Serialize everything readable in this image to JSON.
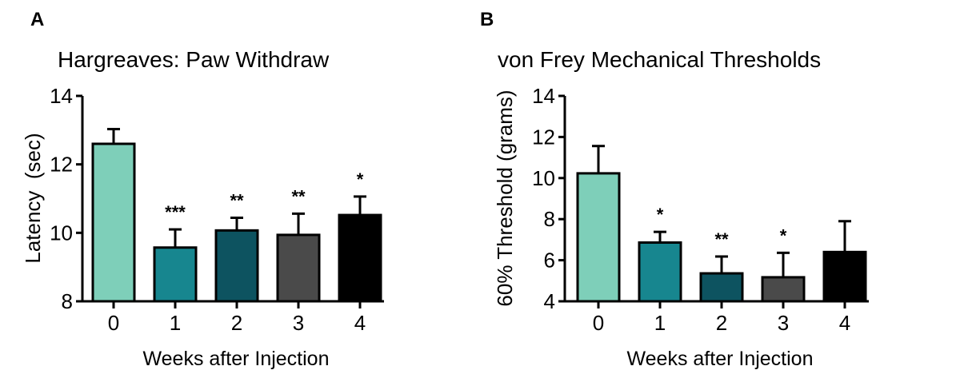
{
  "chart_data": [
    {
      "type": "bar",
      "panel_label": "A",
      "title": "Hargreaves: Paw Withdraw",
      "xlabel": "Weeks after Injection",
      "ylabel": "Latency  (sec)",
      "ylim": [
        8,
        14
      ],
      "yticks": [
        "8",
        "10",
        "12",
        "14"
      ],
      "categories": [
        "0",
        "1",
        "2",
        "3",
        "4"
      ],
      "values": [
        12.6,
        9.57,
        10.07,
        9.94,
        10.52
      ],
      "error_upper": [
        13.03,
        10.1,
        10.44,
        10.56,
        11.06
      ],
      "significance": [
        "",
        "***",
        "**",
        "**",
        "*"
      ],
      "colors": [
        "#7ecfb9",
        "#17868f",
        "#0d5360",
        "#4a4a4a",
        "#000000"
      ],
      "grid": false
    },
    {
      "type": "bar",
      "panel_label": "B",
      "title": "von Frey Mechanical Thresholds",
      "xlabel": "Weeks after Injection",
      "ylabel": "60% Threshold (grams)",
      "ylim": [
        4,
        14
      ],
      "yticks": [
        "4",
        "6",
        "8",
        "10",
        "12",
        "14"
      ],
      "categories": [
        "0",
        "1",
        "2",
        "3",
        "4"
      ],
      "values": [
        10.23,
        6.86,
        5.36,
        5.17,
        6.4
      ],
      "error_upper": [
        11.56,
        7.38,
        6.18,
        6.36,
        7.9
      ],
      "significance": [
        "",
        "*",
        "**",
        "*",
        ""
      ],
      "colors": [
        "#7ecfb9",
        "#17868f",
        "#0d5360",
        "#4a4a4a",
        "#000000"
      ],
      "grid": false
    }
  ]
}
